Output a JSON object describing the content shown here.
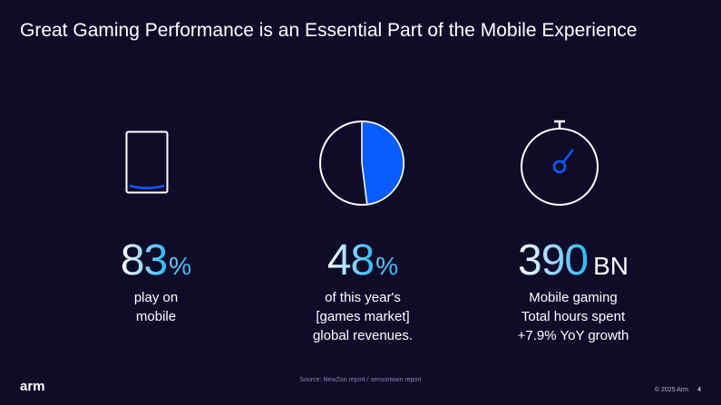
{
  "slide": {
    "title": "Great Gaming Performance is an Essential Part of the Mobile Experience"
  },
  "stats": [
    {
      "number": "83",
      "unit": "%",
      "lines": [
        "play on",
        "mobile"
      ]
    },
    {
      "number": "48",
      "unit": "%",
      "lines": [
        "of this year's",
        "[games market]",
        "global revenues."
      ]
    },
    {
      "number": "390",
      "unit": "BN",
      "lines": [
        "Mobile gaming",
        "Total hours spent",
        "+7.9% YoY growth"
      ]
    }
  ],
  "pie": {
    "share_percent": 48
  },
  "footer": {
    "source": "Source: NewZoo report  / sensortown report",
    "logo": "arm",
    "copyright": "© 2025 Arm",
    "page_number": "4"
  },
  "icons": {
    "phone": "phone-icon",
    "pie": "pie-chart-icon",
    "timer": "stopwatch-icon"
  },
  "colors": {
    "background": "#0f0c2a",
    "accent_blue": "#0a5cff",
    "stat_gradient_end": "#2bb8f5"
  }
}
